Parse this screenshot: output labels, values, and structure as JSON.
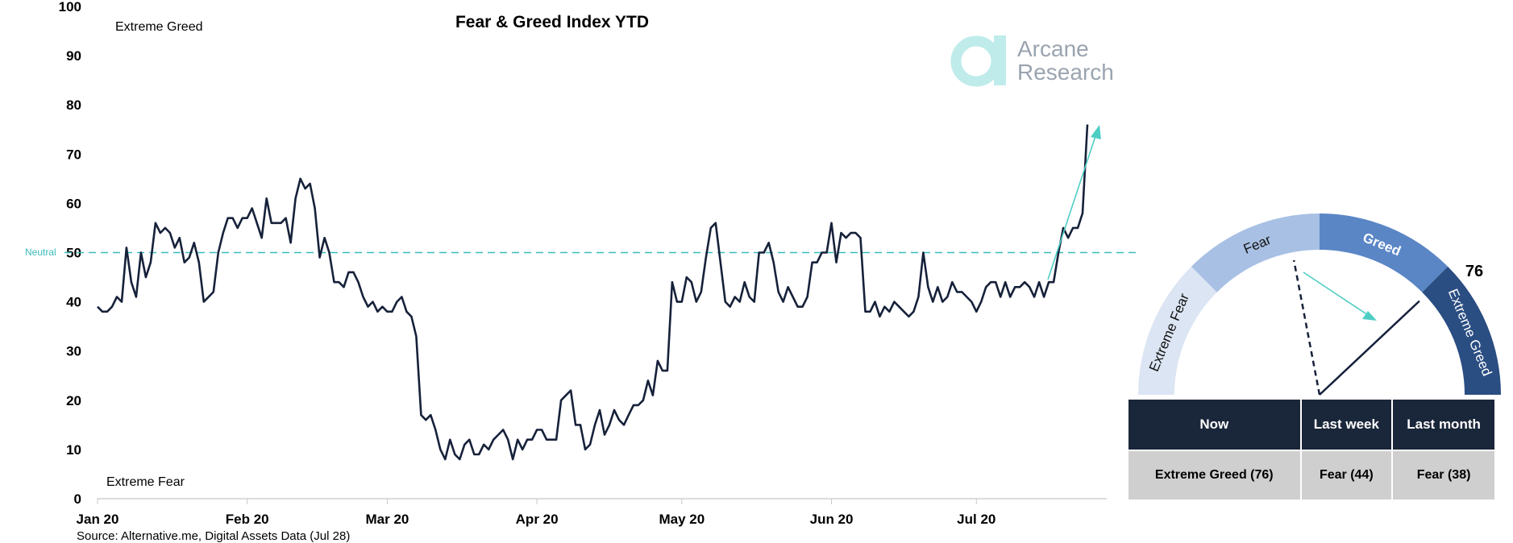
{
  "chart_data": [
    {
      "type": "line",
      "title": "Fear & Greed Index YTD",
      "xlabel": "",
      "ylabel": "",
      "ylim": [
        0,
        100
      ],
      "yticks": [
        0,
        10,
        20,
        30,
        40,
        50,
        60,
        70,
        80,
        90,
        100
      ],
      "xtick_labels": [
        "Jan 20",
        "Feb 20",
        "Mar 20",
        "Apr 20",
        "May 20",
        "Jun 20",
        "Jul 20"
      ],
      "x_range": [
        "2020-01-01",
        "2020-07-28"
      ],
      "grid": false,
      "annotations": {
        "top_zone": "Extreme Greed",
        "bottom_zone": "Extreme Fear",
        "neutral": "Neutral"
      },
      "neutral_line": 50,
      "series": [
        {
          "x_start": "2020-01-01",
          "x_step_days": 1,
          "values": [
            39,
            38,
            38,
            39,
            41,
            40,
            51,
            44,
            41,
            50,
            45,
            48,
            56,
            54,
            55,
            54,
            51,
            53,
            48,
            49,
            52,
            48,
            40,
            41,
            42,
            50,
            54,
            57,
            57,
            55,
            57,
            57,
            59,
            56,
            53,
            61,
            56,
            56,
            56,
            57,
            52,
            61,
            65,
            63,
            64,
            59,
            49,
            53,
            50,
            44,
            44,
            43,
            46,
            46,
            44,
            41,
            39,
            40,
            38,
            39,
            38,
            38,
            40,
            41,
            38,
            37,
            33,
            17,
            16,
            17,
            14,
            10,
            8,
            12,
            9,
            8,
            11,
            12,
            9,
            9,
            11,
            10,
            12,
            13,
            14,
            12,
            8,
            12,
            10,
            12,
            12,
            14,
            14,
            12,
            12,
            12,
            20,
            21,
            22,
            15,
            15,
            10,
            11,
            15,
            18,
            13,
            15,
            18,
            16,
            15,
            17,
            19,
            19,
            20,
            24,
            21,
            28,
            26,
            26,
            44,
            40,
            40,
            45,
            44,
            40,
            42,
            49,
            55,
            56,
            48,
            40,
            39,
            41,
            40,
            44,
            41,
            40,
            50,
            50,
            52,
            48,
            42,
            40,
            43,
            41,
            39,
            39,
            41,
            48,
            48,
            50,
            50,
            56,
            48,
            54,
            53,
            54,
            54,
            53,
            38,
            38,
            40,
            37,
            39,
            38,
            40,
            39,
            38,
            37,
            38,
            41,
            50,
            43,
            40,
            43,
            40,
            41,
            44,
            42,
            42,
            41,
            40,
            38,
            40,
            43,
            44,
            44,
            41,
            44,
            41,
            43,
            43,
            44,
            43,
            41,
            44,
            41,
            44,
            44,
            50,
            55,
            53,
            55,
            55,
            58,
            76
          ]
        }
      ],
      "source": "Source: Alternative.me, Digital Assets Data (Jul 28)"
    },
    {
      "type": "gauge",
      "range": [
        0,
        100
      ],
      "segments": [
        "Extreme Fear",
        "Fear",
        "Greed",
        "Extreme Greed"
      ],
      "value_now": 76,
      "value_label": "76",
      "value_previous": 44
    },
    {
      "type": "table",
      "columns": [
        "Now",
        "Last week",
        "Last month"
      ],
      "rows": [
        [
          "Extreme Greed (76)",
          "Fear (44)",
          "Fear (38)"
        ]
      ]
    }
  ],
  "brand": {
    "line1": "Arcane",
    "line2": "Research"
  },
  "colors": {
    "line": "#16213a",
    "neutral": "#3bbcbc",
    "arrow": "#4ecdc4",
    "logo": "#bfeceb",
    "brand_text": "#9aa4b0",
    "seg_extreme_fear": "#dce5f3",
    "seg_fear": "#a8c0e4",
    "seg_greed": "#5a86c6",
    "seg_extreme_greed": "#2a4d82",
    "table_header": "#1a2639",
    "table_cell": "#cfcfcf"
  }
}
